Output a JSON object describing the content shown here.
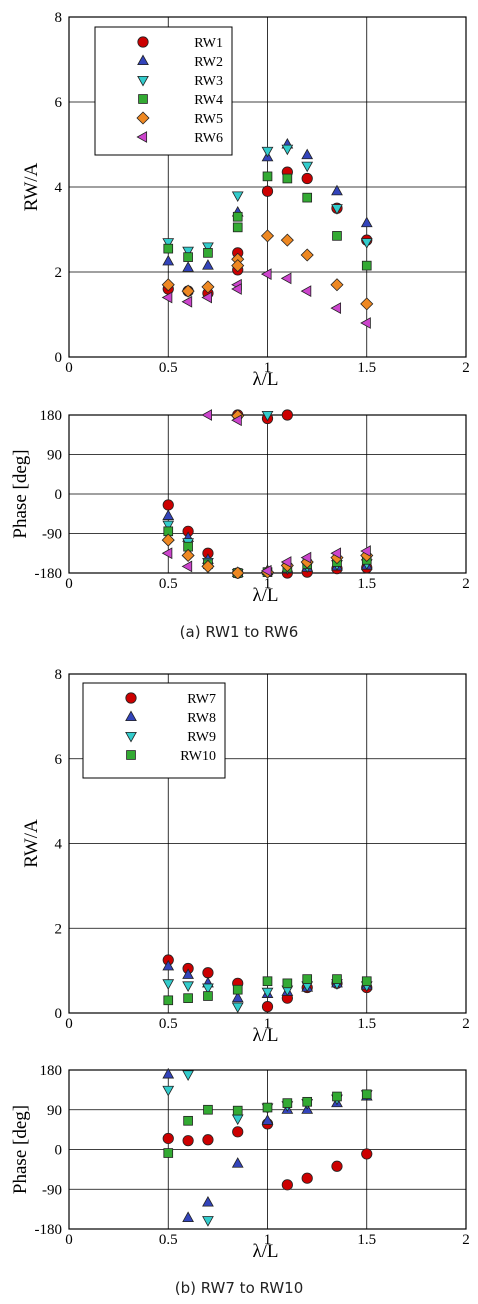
{
  "chart_data": [
    {
      "type": "scatter",
      "xlabel": "λ/L",
      "ylabel": "RW/A",
      "xlim": [
        0,
        2
      ],
      "ylim": [
        0,
        8
      ],
      "xticks": [
        "0",
        "0.5",
        "1",
        "1.5",
        "2"
      ],
      "yticks": [
        "0",
        "2",
        "4",
        "6",
        "8"
      ],
      "grid": true,
      "legend": "top-left",
      "series": [
        {
          "name": "RW1",
          "marker": "circle",
          "color": "#cc0000",
          "x": [
            0.5,
            0.6,
            0.7,
            0.85,
            0.85,
            1.0,
            1.1,
            1.2,
            1.35,
            1.5
          ],
          "y": [
            1.6,
            1.55,
            1.5,
            2.45,
            2.05,
            3.9,
            4.35,
            4.2,
            3.5,
            2.75
          ]
        },
        {
          "name": "RW2",
          "marker": "triangle-up",
          "color": "#3344bb",
          "x": [
            0.5,
            0.6,
            0.7,
            0.85,
            1.0,
            1.1,
            1.2,
            1.35,
            1.5
          ],
          "y": [
            2.25,
            2.1,
            2.15,
            3.4,
            4.7,
            5.0,
            4.75,
            3.9,
            3.15
          ]
        },
        {
          "name": "RW3",
          "marker": "triangle-down",
          "color": "#33cccc",
          "x": [
            0.5,
            0.6,
            0.7,
            0.85,
            1.0,
            1.1,
            1.2,
            1.35,
            1.5
          ],
          "y": [
            2.7,
            2.5,
            2.6,
            3.8,
            4.85,
            4.9,
            4.5,
            3.5,
            2.7
          ]
        },
        {
          "name": "RW4",
          "marker": "square",
          "color": "#33aa33",
          "x": [
            0.5,
            0.6,
            0.7,
            0.85,
            0.85,
            1.0,
            1.1,
            1.2,
            1.35,
            1.5
          ],
          "y": [
            2.55,
            2.35,
            2.45,
            3.3,
            3.05,
            4.25,
            4.2,
            3.75,
            2.85,
            2.15
          ]
        },
        {
          "name": "RW5",
          "marker": "diamond",
          "color": "#ee8822",
          "x": [
            0.5,
            0.6,
            0.7,
            0.85,
            0.85,
            1.0,
            1.1,
            1.2,
            1.35,
            1.5
          ],
          "y": [
            1.7,
            1.55,
            1.65,
            2.3,
            2.15,
            2.85,
            2.75,
            2.4,
            1.7,
            1.25
          ]
        },
        {
          "name": "RW6",
          "marker": "triangle-left",
          "color": "#cc44cc",
          "x": [
            0.5,
            0.6,
            0.7,
            0.85,
            0.85,
            1.0,
            1.1,
            1.2,
            1.35,
            1.5
          ],
          "y": [
            1.4,
            1.3,
            1.4,
            1.7,
            1.6,
            1.95,
            1.85,
            1.55,
            1.15,
            0.8
          ]
        }
      ]
    },
    {
      "type": "scatter",
      "xlabel": "λ/L",
      "ylabel": "Phase [deg]",
      "xlim": [
        0,
        2
      ],
      "ylim": [
        -180,
        180
      ],
      "xticks": [
        "0",
        "0.5",
        "1",
        "1.5",
        "2"
      ],
      "yticks": [
        "-180",
        "-90",
        "0",
        "90",
        "180"
      ],
      "grid": true,
      "series": [
        {
          "name": "RW1",
          "x": [
            0.5,
            0.6,
            0.7,
            0.85,
            0.85,
            1.0,
            1.1,
            1.1,
            1.2,
            1.35,
            1.5
          ],
          "y": [
            -25,
            -85,
            -135,
            -180,
            180,
            172,
            180,
            -180,
            -178,
            -170,
            -168
          ]
        },
        {
          "name": "RW2",
          "x": [
            0.5,
            0.6,
            0.7,
            0.85,
            1.0,
            1.1,
            1.2,
            1.35,
            1.5
          ],
          "y": [
            -50,
            -100,
            -150,
            -180,
            -175,
            -172,
            -168,
            -165,
            -163
          ]
        },
        {
          "name": "RW3",
          "x": [
            0.5,
            0.6,
            0.7,
            0.85,
            1.0,
            1.1,
            1.2,
            1.35,
            1.5
          ],
          "y": [
            -70,
            -110,
            -155,
            -180,
            180,
            -170,
            -165,
            -160,
            -158
          ]
        },
        {
          "name": "RW4",
          "x": [
            0.5,
            0.6,
            0.7,
            0.85,
            1.0,
            1.1,
            1.2,
            1.35,
            1.5
          ],
          "y": [
            -85,
            -120,
            -160,
            -180,
            -178,
            -168,
            -160,
            -155,
            -150
          ]
        },
        {
          "name": "RW5",
          "x": [
            0.5,
            0.6,
            0.7,
            0.85,
            0.85,
            1.0,
            1.1,
            1.2,
            1.35,
            1.5
          ],
          "y": [
            -105,
            -140,
            -165,
            -180,
            178,
            -178,
            -163,
            -155,
            -145,
            -140
          ]
        },
        {
          "name": "RW6",
          "x": [
            0.5,
            0.6,
            0.7,
            0.85,
            1.0,
            1.1,
            1.2,
            1.35,
            1.5
          ],
          "y": [
            -135,
            -165,
            180,
            168,
            -175,
            -155,
            -145,
            -135,
            -130
          ]
        }
      ]
    },
    {
      "type": "scatter",
      "xlabel": "λ/L",
      "ylabel": "RW/A",
      "xlim": [
        0,
        2
      ],
      "ylim": [
        0,
        8
      ],
      "xticks": [
        "0",
        "0.5",
        "1",
        "1.5",
        "2"
      ],
      "yticks": [
        "0",
        "2",
        "4",
        "6",
        "8"
      ],
      "grid": true,
      "legend": "top-left",
      "series": [
        {
          "name": "RW7",
          "marker": "circle",
          "color": "#cc0000",
          "x": [
            0.5,
            0.6,
            0.7,
            0.85,
            1.0,
            1.1,
            1.2,
            1.35,
            1.5
          ],
          "y": [
            1.25,
            1.05,
            0.95,
            0.7,
            0.15,
            0.35,
            0.6,
            0.7,
            0.6
          ]
        },
        {
          "name": "RW8",
          "marker": "triangle-up",
          "color": "#3344bb",
          "x": [
            0.5,
            0.6,
            0.7,
            0.85,
            1.0,
            1.1,
            1.2,
            1.35,
            1.5
          ],
          "y": [
            1.1,
            0.9,
            0.7,
            0.35,
            0.45,
            0.5,
            0.6,
            0.7,
            0.65
          ]
        },
        {
          "name": "RW9",
          "marker": "triangle-down",
          "color": "#33cccc",
          "x": [
            0.5,
            0.6,
            0.7,
            0.85,
            1.0,
            1.1,
            1.2,
            1.35,
            1.5
          ],
          "y": [
            0.7,
            0.65,
            0.6,
            0.15,
            0.5,
            0.55,
            0.65,
            0.7,
            0.65
          ]
        },
        {
          "name": "RW10",
          "marker": "square",
          "color": "#33aa33",
          "x": [
            0.5,
            0.6,
            0.7,
            0.85,
            1.0,
            1.1,
            1.2,
            1.35,
            1.5
          ],
          "y": [
            0.3,
            0.35,
            0.4,
            0.55,
            0.75,
            0.7,
            0.8,
            0.8,
            0.75
          ]
        }
      ]
    },
    {
      "type": "scatter",
      "xlabel": "λ/L",
      "ylabel": "Phase [deg]",
      "xlim": [
        0,
        2
      ],
      "ylim": [
        -180,
        180
      ],
      "xticks": [
        "0",
        "0.5",
        "1",
        "1.5",
        "2"
      ],
      "yticks": [
        "-180",
        "-90",
        "0",
        "90",
        "180"
      ],
      "grid": true,
      "series": [
        {
          "name": "RW7",
          "x": [
            0.5,
            0.6,
            0.7,
            0.85,
            1.0,
            1.1,
            1.2,
            1.35,
            1.5
          ],
          "y": [
            25,
            20,
            22,
            40,
            58,
            -80,
            -65,
            -38,
            -10
          ]
        },
        {
          "name": "RW8",
          "x": [
            0.5,
            0.6,
            0.7,
            0.85,
            1.0,
            1.1,
            1.2,
            1.35,
            1.5
          ],
          "y": [
            170,
            -155,
            -120,
            -32,
            65,
            90,
            90,
            105,
            120
          ]
        },
        {
          "name": "RW9",
          "x": [
            0.5,
            0.6,
            0.7,
            0.85,
            1.0,
            1.1,
            1.2,
            1.35,
            1.5
          ],
          "y": [
            135,
            170,
            -160,
            70,
            95,
            100,
            105,
            115,
            125
          ]
        },
        {
          "name": "RW10",
          "x": [
            0.5,
            0.6,
            0.7,
            0.85,
            1.0,
            1.1,
            1.2,
            1.35,
            1.5
          ],
          "y": [
            -8,
            65,
            90,
            88,
            95,
            105,
            108,
            120,
            125
          ]
        }
      ]
    }
  ],
  "captions": {
    "a": "(a)  RW1  to  RW6",
    "b": "(b)  RW7  to  RW10"
  }
}
